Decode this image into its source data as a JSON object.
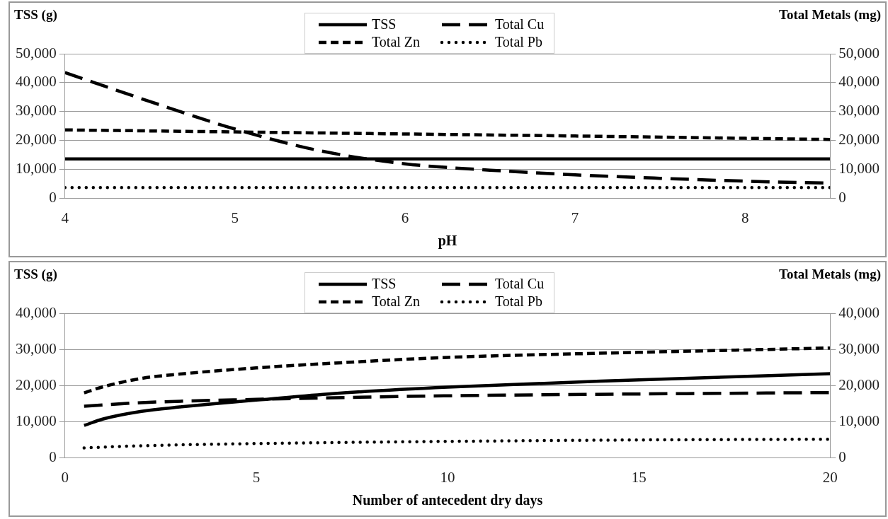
{
  "chart_data": [
    {
      "type": "line",
      "xlabel": "pH",
      "ylabel": "TSS (g)",
      "y2label": "Total Metals (mg)",
      "xlim": [
        4,
        8.5
      ],
      "xticks": [
        4,
        5,
        6,
        7,
        8
      ],
      "ylim": [
        0,
        50000
      ],
      "yticks": [
        0,
        {
          "value": 10000,
          "label": "10,000"
        },
        {
          "value": 20000,
          "label": "20,000"
        },
        {
          "value": 30000,
          "label": "30,000"
        },
        {
          "value": 40000,
          "label": "40,000"
        },
        {
          "value": 50000,
          "label": "50,000"
        }
      ],
      "y2lim": [
        0,
        50000
      ],
      "y2ticks": [
        0,
        {
          "value": 10000,
          "label": "10,000"
        },
        {
          "value": 20000,
          "label": "20,000"
        },
        {
          "value": 30000,
          "label": "30,000"
        },
        {
          "value": 40000,
          "label": "40,000"
        },
        {
          "value": 50000,
          "label": "50,000"
        }
      ],
      "grid": "y",
      "legend": "top",
      "marker": "none",
      "series": [
        {
          "name": "TSS",
          "color": "#000000",
          "line_style": "solid",
          "x": [
            4,
            5,
            6,
            7,
            8,
            8.5
          ],
          "values": [
            13700,
            13700,
            13700,
            13700,
            13700,
            13700
          ]
        },
        {
          "name": "Total Cu",
          "color": "#000000",
          "line_style": "dashed",
          "axis": "y2",
          "x": [
            4,
            4.5,
            5,
            5.5,
            6,
            6.5,
            7,
            7.5,
            8,
            8.5
          ],
          "values": [
            43500,
            33500,
            24000,
            16500,
            12000,
            9800,
            8200,
            7000,
            6000,
            5300
          ]
        },
        {
          "name": "Total Zn",
          "color": "#000000",
          "line_style": "dashed",
          "axis": "y2",
          "x": [
            4,
            5,
            6,
            7,
            8,
            8.5
          ],
          "values": [
            23700,
            23000,
            22300,
            21600,
            20800,
            20400
          ]
        },
        {
          "name": "Total Pb",
          "color": "#000000",
          "line_style": "dotted",
          "axis": "y2",
          "x": [
            4,
            5,
            6,
            7,
            8,
            8.5
          ],
          "values": [
            3800,
            3800,
            3800,
            3800,
            3800,
            3800
          ]
        }
      ]
    },
    {
      "type": "line",
      "xlabel": "Number of antecedent dry days",
      "ylabel": "TSS (g)",
      "y2label": "Total Metals (mg)",
      "xlim": [
        0,
        20
      ],
      "xticks": [
        0,
        5,
        10,
        15,
        20
      ],
      "ylim": [
        0,
        40000
      ],
      "yticks": [
        0,
        {
          "value": 10000,
          "label": "10,000"
        },
        {
          "value": 20000,
          "label": "20,000"
        },
        {
          "value": 30000,
          "label": "30,000"
        },
        {
          "value": 40000,
          "label": "40,000"
        }
      ],
      "y2lim": [
        0,
        40000
      ],
      "y2ticks": [
        0,
        {
          "value": 10000,
          "label": "10,000"
        },
        {
          "value": 20000,
          "label": "20,000"
        },
        {
          "value": 30000,
          "label": "30,000"
        },
        {
          "value": 40000,
          "label": "40,000"
        }
      ],
      "grid": "y",
      "legend": "top",
      "marker": "none",
      "series": [
        {
          "name": "TSS",
          "color": "#000000",
          "line_style": "solid",
          "x": [
            0.5,
            1,
            2,
            3,
            4,
            5,
            7,
            10,
            15,
            20
          ],
          "values": [
            9000,
            10800,
            12900,
            14100,
            15100,
            16000,
            17800,
            19600,
            21600,
            23300
          ]
        },
        {
          "name": "Total Cu",
          "color": "#000000",
          "line_style": "dashed",
          "axis": "y2",
          "x": [
            0.5,
            2,
            5,
            10,
            15,
            20
          ],
          "values": [
            14300,
            15300,
            16200,
            17200,
            17700,
            18100
          ]
        },
        {
          "name": "Total Zn",
          "color": "#000000",
          "line_style": "dashed",
          "axis": "y2",
          "x": [
            0.5,
            1,
            2,
            3,
            5,
            7,
            10,
            15,
            20
          ],
          "values": [
            18000,
            19700,
            22000,
            23200,
            24900,
            26200,
            27800,
            29200,
            30400
          ]
        },
        {
          "name": "Total Pb",
          "color": "#000000",
          "line_style": "dotted",
          "axis": "y2",
          "x": [
            0.5,
            2,
            5,
            10,
            15,
            20
          ],
          "values": [
            2800,
            3400,
            4000,
            4600,
            5000,
            5200
          ]
        }
      ]
    }
  ]
}
